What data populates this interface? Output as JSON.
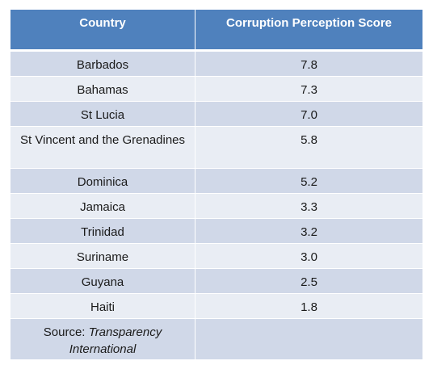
{
  "table": {
    "headers": [
      "Country",
      "Corruption Perception Score"
    ],
    "rows": [
      {
        "country": "Barbados",
        "score": "7.8"
      },
      {
        "country": "Bahamas",
        "score": "7.3"
      },
      {
        "country": "St Lucia",
        "score": "7.0"
      },
      {
        "country": "St Vincent and the Grenadines",
        "score": "5.8"
      },
      {
        "country": "Dominica",
        "score": "5.2"
      },
      {
        "country": "Jamaica",
        "score": "3.3"
      },
      {
        "country": "Trinidad",
        "score": "3.2"
      },
      {
        "country": "Suriname",
        "score": "3.0"
      },
      {
        "country": "Guyana",
        "score": "2.5"
      },
      {
        "country": "Haiti",
        "score": "1.8"
      }
    ],
    "source": {
      "prefix": "Source: ",
      "name": "Transparency International",
      "score": ""
    }
  },
  "colors": {
    "header": "#4f81bd",
    "row_odd": "#d0d8e8",
    "row_even": "#e9edf4"
  }
}
